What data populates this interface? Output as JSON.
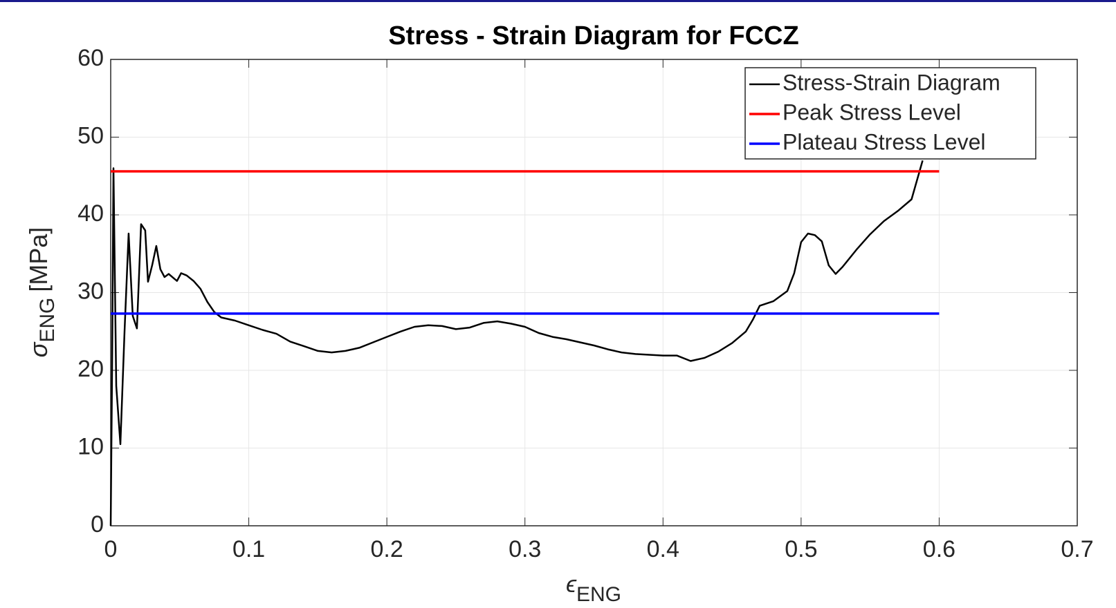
{
  "chart_data": {
    "type": "line",
    "title": "Stress - Strain Diagram for FCCZ",
    "xlabel": {
      "symbol": "ϵ",
      "subscript": "ENG"
    },
    "ylabel": {
      "symbol": "σ",
      "subscript": "ENG",
      "unit": "[MPa]"
    },
    "xlim": [
      0,
      0.7
    ],
    "xticks": [
      0,
      0.1,
      0.2,
      0.3,
      0.4,
      0.5,
      0.6,
      0.7
    ],
    "ylim": [
      0,
      60
    ],
    "yticks": [
      0,
      10,
      20,
      30,
      40,
      50,
      60
    ],
    "grid": true,
    "legend": "top-right",
    "series": [
      {
        "name": "Stress-Strain Diagram",
        "color": "#000000",
        "x": [
          0,
          0.001,
          0.002,
          0.004,
          0.007,
          0.01,
          0.013,
          0.016,
          0.019,
          0.022,
          0.025,
          0.027,
          0.03,
          0.033,
          0.036,
          0.039,
          0.042,
          0.046,
          0.048,
          0.051,
          0.055,
          0.06,
          0.065,
          0.07,
          0.075,
          0.08,
          0.09,
          0.1,
          0.11,
          0.12,
          0.13,
          0.14,
          0.15,
          0.16,
          0.17,
          0.18,
          0.19,
          0.2,
          0.21,
          0.22,
          0.23,
          0.24,
          0.25,
          0.26,
          0.27,
          0.28,
          0.29,
          0.3,
          0.31,
          0.32,
          0.33,
          0.34,
          0.35,
          0.36,
          0.37,
          0.38,
          0.39,
          0.4,
          0.41,
          0.42,
          0.43,
          0.44,
          0.45,
          0.46,
          0.465,
          0.47,
          0.48,
          0.49,
          0.495,
          0.5,
          0.505,
          0.51,
          0.515,
          0.52,
          0.525,
          0.53,
          0.54,
          0.55,
          0.56,
          0.57,
          0.58,
          0.588
        ],
        "values": [
          0,
          20,
          46,
          18,
          10.5,
          25,
          37.6,
          27,
          25.4,
          38.8,
          38,
          31.4,
          33.5,
          36,
          33,
          32,
          32.4,
          31.8,
          31.5,
          32.5,
          32.2,
          31.5,
          30.5,
          28.8,
          27.5,
          26.8,
          26.4,
          25.8,
          25.2,
          24.7,
          23.7,
          23.1,
          22.5,
          22.3,
          22.5,
          22.9,
          23.6,
          24.3,
          25,
          25.6,
          25.8,
          25.7,
          25.3,
          25.5,
          26.1,
          26.3,
          26,
          25.6,
          24.8,
          24.3,
          24,
          23.6,
          23.2,
          22.7,
          22.3,
          22.1,
          22,
          21.9,
          21.9,
          21.2,
          21.6,
          22.4,
          23.5,
          25,
          26.5,
          28.3,
          28.9,
          30.2,
          32.5,
          36.5,
          37.6,
          37.4,
          36.6,
          33.5,
          32.4,
          33.3,
          35.5,
          37.5,
          39.2,
          40.5,
          42,
          47
        ]
      },
      {
        "name": "Peak Stress Level",
        "color": "#ff0000",
        "x": [
          0,
          0.6
        ],
        "values": [
          45.6,
          45.6
        ]
      },
      {
        "name": "Plateau Stress Level",
        "color": "#0000ff",
        "x": [
          0,
          0.6
        ],
        "values": [
          27.3,
          27.3
        ]
      }
    ]
  }
}
